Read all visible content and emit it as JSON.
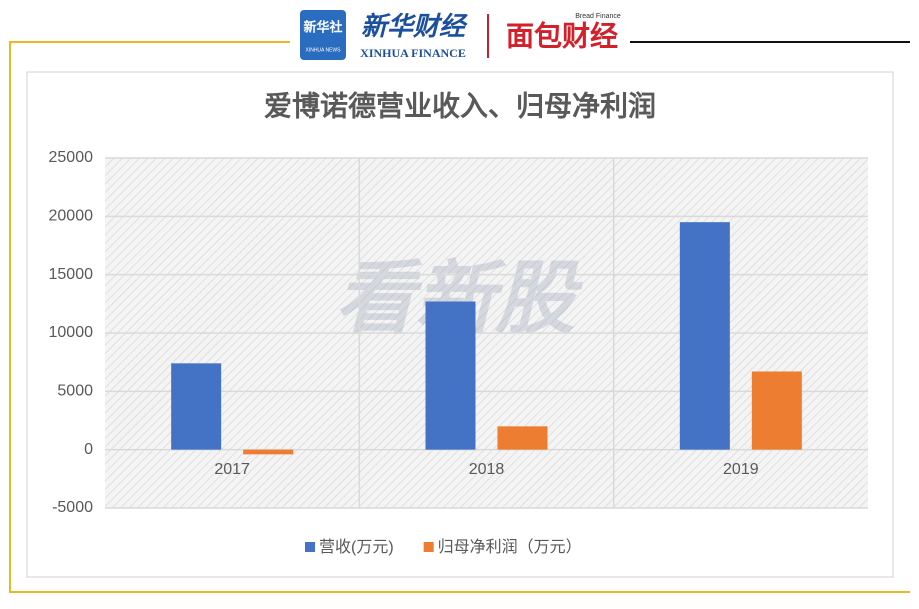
{
  "header": {
    "logo_box": "新华社",
    "logo_box_sub": "XINHUA NEWS",
    "brand": "新华财经",
    "brand_sub": "XINHUA FINANCE",
    "partner_sub": "Bread Finance",
    "partner": "面包财经"
  },
  "watermark": "看新股",
  "chart_data": {
    "type": "bar",
    "title": "爱博诺德营业收入、归母净利润",
    "categories": [
      "2017",
      "2018",
      "2019"
    ],
    "series": [
      {
        "name": "营收(万元)",
        "color": "#4472c4",
        "values": [
          7400,
          12700,
          19500
        ]
      },
      {
        "name": "归母净利润（万元）",
        "color": "#ed7d31",
        "values": [
          -400,
          2000,
          6700
        ]
      }
    ],
    "ylim": [
      -5000,
      25000
    ],
    "yticks": [
      -5000,
      0,
      5000,
      10000,
      15000,
      20000,
      25000
    ],
    "grid": true,
    "legend": "bottom"
  }
}
